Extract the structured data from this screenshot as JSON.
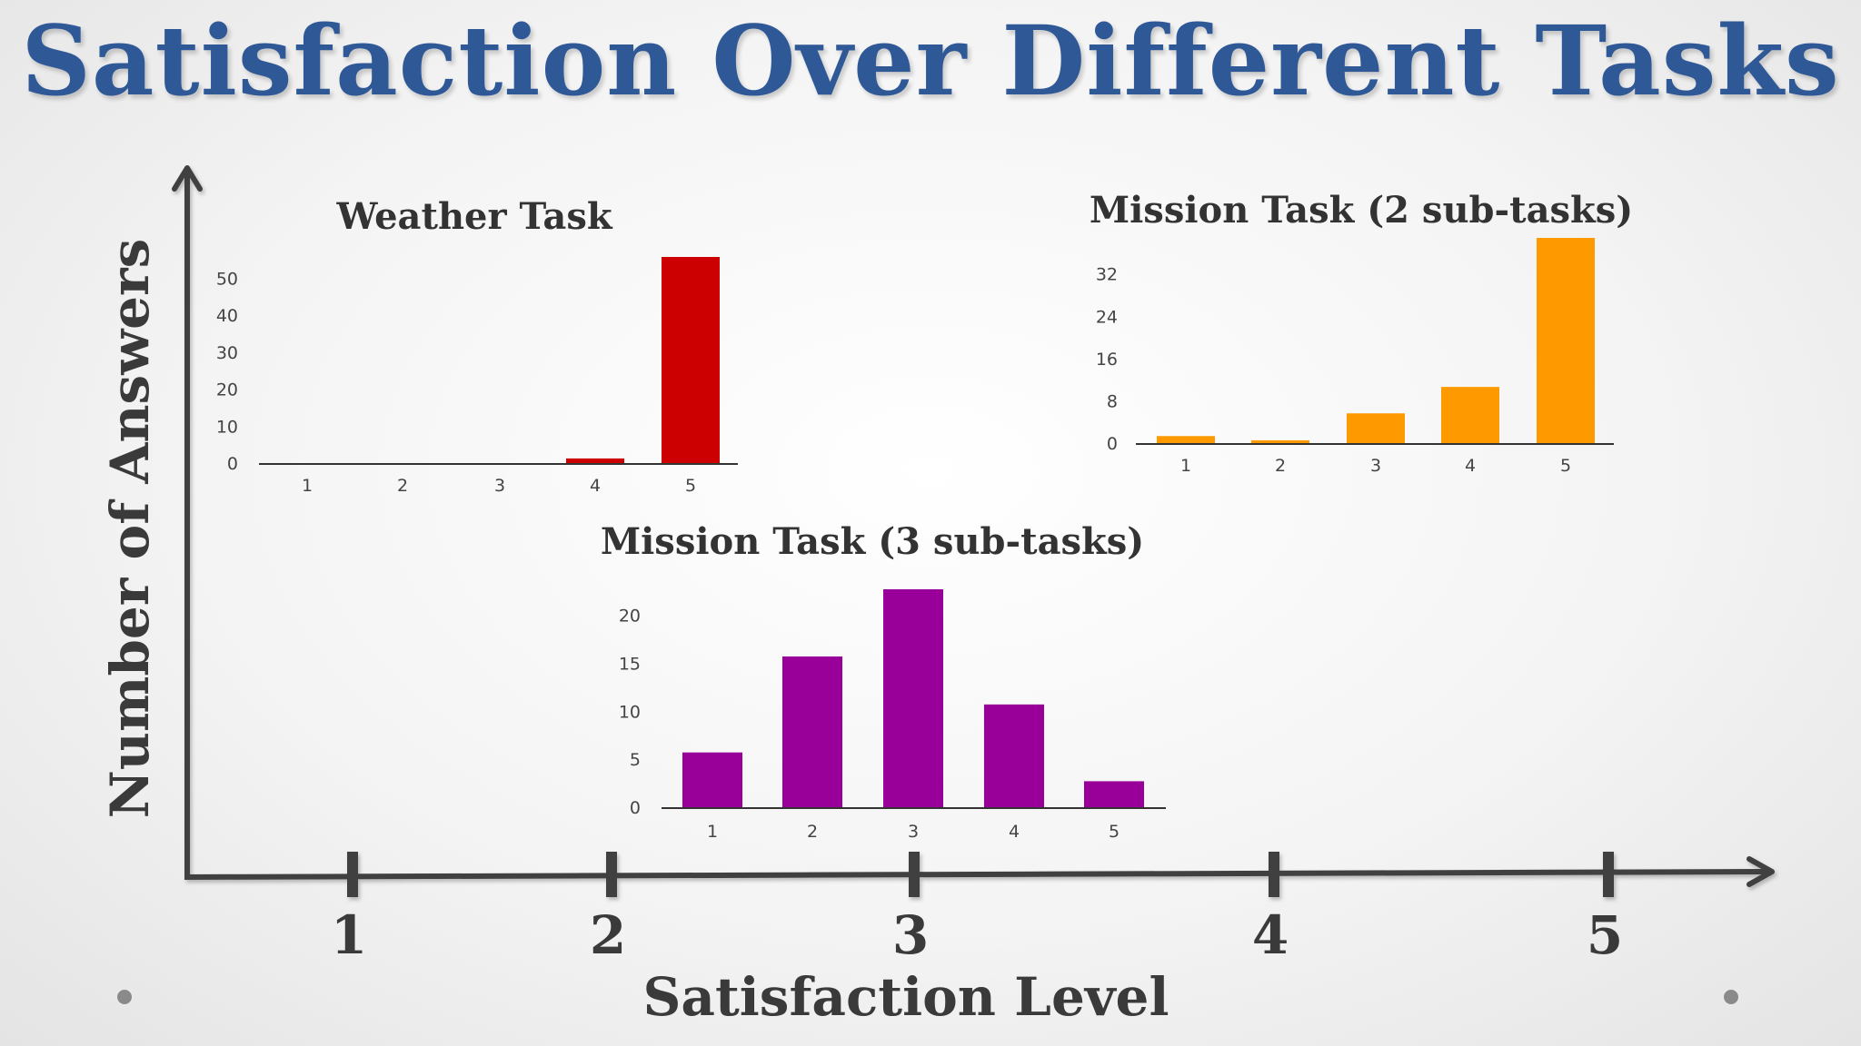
{
  "title": "Satisfaction Over Different Tasks",
  "colors": {
    "title": "#2f5897",
    "axis": "#404040",
    "weather": "#cc0000",
    "mission2": "#ff9900",
    "mission3": "#990099"
  },
  "outer_axes": {
    "xlabel": "Satisfaction Level",
    "ylabel": "Number of Answers",
    "ticks": [
      "1",
      "2",
      "3",
      "4",
      "5"
    ]
  },
  "chart_data": [
    {
      "type": "bar",
      "title": "Weather Task",
      "categories": [
        "1",
        "2",
        "3",
        "4",
        "5"
      ],
      "values": [
        0,
        0,
        0,
        1.5,
        56
      ],
      "yticks": [
        0,
        10,
        20,
        30,
        40,
        50
      ],
      "ylim": [
        0,
        56
      ],
      "color": "#cc0000",
      "grid": false
    },
    {
      "type": "bar",
      "title": "Mission Task (2 sub-tasks)",
      "categories": [
        "1",
        "2",
        "3",
        "4",
        "5"
      ],
      "values": [
        1.5,
        0.7,
        5.8,
        10.8,
        39
      ],
      "yticks": [
        0,
        8,
        16,
        24,
        32
      ],
      "ylim": [
        0,
        39
      ],
      "color": "#ff9900",
      "grid": false
    },
    {
      "type": "bar",
      "title": "Mission Task (3 sub-tasks)",
      "categories": [
        "1",
        "2",
        "3",
        "4",
        "5"
      ],
      "values": [
        5.8,
        15.8,
        22.8,
        10.8,
        2.8
      ],
      "yticks": [
        0,
        5,
        10,
        15,
        20
      ],
      "ylim": [
        0,
        22.8
      ],
      "color": "#990099",
      "grid": false
    }
  ]
}
